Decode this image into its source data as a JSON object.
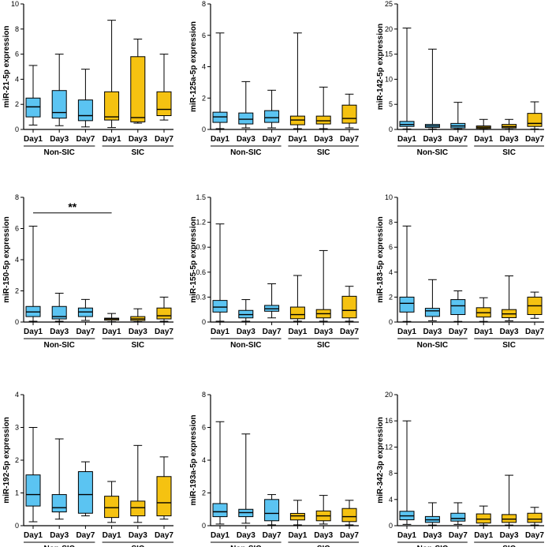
{
  "colors": {
    "non_sic": "#5bc4f2",
    "sic": "#f5c211",
    "axis": "#000000"
  },
  "chart_data": [
    {
      "type": "boxplot",
      "ylabel": "miR-21-5p  expression",
      "ylim": [
        0,
        10
      ],
      "ticks": [
        "0",
        "2",
        "4",
        "6",
        "8",
        "10"
      ],
      "tick_values": [
        0,
        2,
        4,
        6,
        8,
        10
      ],
      "categories": [
        "Day1",
        "Day3",
        "Day7",
        "Day1",
        "Day3",
        "Day7"
      ],
      "groups": [
        {
          "name": "Non-SIC",
          "from": 0,
          "to": 2
        },
        {
          "name": "SIC",
          "from": 3,
          "to": 5
        }
      ],
      "boxes": [
        {
          "min": 0.35,
          "q1": 1.0,
          "median": 1.8,
          "q3": 2.5,
          "max": 5.1,
          "group": "non_sic"
        },
        {
          "min": 0.3,
          "q1": 0.9,
          "median": 1.35,
          "q3": 3.1,
          "max": 6.0,
          "group": "non_sic"
        },
        {
          "min": 0.2,
          "q1": 0.7,
          "median": 1.1,
          "q3": 2.35,
          "max": 4.8,
          "group": "non_sic"
        },
        {
          "min": 0.15,
          "q1": 0.75,
          "median": 1.0,
          "q3": 3.0,
          "max": 8.7,
          "group": "sic"
        },
        {
          "min": 0.5,
          "q1": 0.6,
          "median": 0.95,
          "q3": 5.8,
          "max": 7.2,
          "group": "sic"
        },
        {
          "min": 0.75,
          "q1": 1.1,
          "median": 1.6,
          "q3": 3.0,
          "max": 6.0,
          "group": "sic"
        }
      ]
    },
    {
      "type": "boxplot",
      "ylabel": "miR-125a-5p  expression",
      "ylim": [
        0,
        8
      ],
      "ticks": [
        "0",
        "2",
        "4",
        "6",
        "8"
      ],
      "tick_values": [
        0,
        2,
        4,
        6,
        8
      ],
      "categories": [
        "Day1",
        "Day3",
        "Day7",
        "Day1",
        "Day3",
        "Day7"
      ],
      "groups": [
        {
          "name": "Non-SIC",
          "from": 0,
          "to": 2
        },
        {
          "name": "SIC",
          "from": 3,
          "to": 5
        }
      ],
      "boxes": [
        {
          "min": 0.05,
          "q1": 0.45,
          "median": 0.8,
          "q3": 1.1,
          "max": 6.15,
          "group": "non_sic"
        },
        {
          "min": 0.1,
          "q1": 0.35,
          "median": 0.65,
          "q3": 1.05,
          "max": 3.05,
          "group": "non_sic"
        },
        {
          "min": 0.1,
          "q1": 0.45,
          "median": 0.75,
          "q3": 1.2,
          "max": 2.5,
          "group": "non_sic"
        },
        {
          "min": 0.05,
          "q1": 0.3,
          "median": 0.6,
          "q3": 0.85,
          "max": 6.15,
          "group": "sic"
        },
        {
          "min": 0.05,
          "q1": 0.35,
          "median": 0.55,
          "q3": 0.85,
          "max": 2.7,
          "group": "sic"
        },
        {
          "min": 0.1,
          "q1": 0.4,
          "median": 0.7,
          "q3": 1.55,
          "max": 2.25,
          "group": "sic"
        }
      ]
    },
    {
      "type": "boxplot",
      "ylabel": "miR-142-5p  expression",
      "ylim": [
        0,
        25
      ],
      "ticks": [
        "0",
        "5",
        "10",
        "15",
        "20",
        "25"
      ],
      "tick_values": [
        0,
        5,
        10,
        15,
        20,
        25
      ],
      "categories": [
        "Day1",
        "Day3",
        "Day7",
        "Day1",
        "Day3",
        "Day7"
      ],
      "groups": [
        {
          "name": "Non-SIC",
          "from": 0,
          "to": 2
        },
        {
          "name": "SIC",
          "from": 3,
          "to": 5
        }
      ],
      "boxes": [
        {
          "min": 0.1,
          "q1": 0.6,
          "median": 1.0,
          "q3": 1.6,
          "max": 20.2,
          "group": "non_sic"
        },
        {
          "min": 0.1,
          "q1": 0.4,
          "median": 0.7,
          "q3": 1.0,
          "max": 16.0,
          "group": "non_sic"
        },
        {
          "min": 0.1,
          "q1": 0.3,
          "median": 0.7,
          "q3": 1.2,
          "max": 5.4,
          "group": "non_sic"
        },
        {
          "min": 0.05,
          "q1": 0.2,
          "median": 0.45,
          "q3": 0.7,
          "max": 2.0,
          "group": "sic"
        },
        {
          "min": 0.05,
          "q1": 0.3,
          "median": 0.55,
          "q3": 1.0,
          "max": 2.0,
          "group": "sic"
        },
        {
          "min": 0.1,
          "q1": 0.6,
          "median": 1.2,
          "q3": 3.2,
          "max": 5.5,
          "group": "sic"
        }
      ]
    },
    {
      "type": "boxplot",
      "ylabel": "miR-150-5p  expression",
      "ylim": [
        0,
        8
      ],
      "ticks": [
        "0",
        "2",
        "4",
        "6",
        "8"
      ],
      "tick_values": [
        0,
        2,
        4,
        6,
        8
      ],
      "categories": [
        "Day1",
        "Day3",
        "Day7",
        "Day1",
        "Day3",
        "Day7"
      ],
      "groups": [
        {
          "name": "Non-SIC",
          "from": 0,
          "to": 2
        },
        {
          "name": "SIC",
          "from": 3,
          "to": 5
        }
      ],
      "boxes": [
        {
          "min": 0.05,
          "q1": 0.35,
          "median": 0.65,
          "q3": 1.0,
          "max": 6.15,
          "group": "non_sic"
        },
        {
          "min": 0.05,
          "q1": 0.2,
          "median": 0.35,
          "q3": 1.0,
          "max": 1.85,
          "group": "non_sic"
        },
        {
          "min": 0.1,
          "q1": 0.35,
          "median": 0.65,
          "q3": 0.9,
          "max": 1.45,
          "group": "non_sic"
        },
        {
          "min": 0.02,
          "q1": 0.12,
          "median": 0.2,
          "q3": 0.25,
          "max": 0.55,
          "group": "sic"
        },
        {
          "min": 0.02,
          "q1": 0.1,
          "median": 0.2,
          "q3": 0.35,
          "max": 0.85,
          "group": "sic"
        },
        {
          "min": 0.05,
          "q1": 0.2,
          "median": 0.4,
          "q3": 0.9,
          "max": 1.6,
          "group": "sic"
        }
      ],
      "significance": {
        "label": "**",
        "from": 0,
        "to": 3,
        "y": 7.0
      }
    },
    {
      "type": "boxplot",
      "ylabel": "miR-155-5p  expression",
      "ylim": [
        0,
        1.5
      ],
      "ticks": [
        "0",
        "0.3",
        "0.6",
        "0.9",
        "1.2",
        "1.5"
      ],
      "tick_values": [
        0,
        0.3,
        0.6,
        0.9,
        1.2,
        1.5
      ],
      "categories": [
        "Day1",
        "Day3",
        "Day7",
        "Day1",
        "Day3",
        "Day7"
      ],
      "groups": [
        {
          "name": "Non-SIC",
          "from": 0,
          "to": 2
        },
        {
          "name": "SIC",
          "from": 3,
          "to": 5
        }
      ],
      "boxes": [
        {
          "min": 0.01,
          "q1": 0.12,
          "median": 0.18,
          "q3": 0.26,
          "max": 1.18,
          "group": "non_sic"
        },
        {
          "min": 0.01,
          "q1": 0.05,
          "median": 0.09,
          "q3": 0.14,
          "max": 0.27,
          "group": "non_sic"
        },
        {
          "min": 0.05,
          "q1": 0.13,
          "median": 0.16,
          "q3": 0.2,
          "max": 0.46,
          "group": "non_sic"
        },
        {
          "min": 0.01,
          "q1": 0.04,
          "median": 0.09,
          "q3": 0.18,
          "max": 0.56,
          "group": "sic"
        },
        {
          "min": 0.01,
          "q1": 0.05,
          "median": 0.1,
          "q3": 0.15,
          "max": 0.86,
          "group": "sic"
        },
        {
          "min": 0.01,
          "q1": 0.05,
          "median": 0.14,
          "q3": 0.31,
          "max": 0.43,
          "group": "sic"
        }
      ]
    },
    {
      "type": "boxplot",
      "ylabel": "miR-183-5p  expression",
      "ylim": [
        0,
        10
      ],
      "ticks": [
        "0",
        "2",
        "4",
        "6",
        "8",
        "10"
      ],
      "tick_values": [
        0,
        2,
        4,
        6,
        8,
        10
      ],
      "categories": [
        "Day1",
        "Day3",
        "Day7",
        "Day1",
        "Day3",
        "Day7"
      ],
      "groups": [
        {
          "name": "Non-SIC",
          "from": 0,
          "to": 2
        },
        {
          "name": "SIC",
          "from": 3,
          "to": 5
        }
      ],
      "boxes": [
        {
          "min": 0.05,
          "q1": 0.8,
          "median": 1.5,
          "q3": 2.0,
          "max": 7.7,
          "group": "non_sic"
        },
        {
          "min": 0.1,
          "q1": 0.45,
          "median": 0.9,
          "q3": 1.1,
          "max": 3.4,
          "group": "non_sic"
        },
        {
          "min": 0.05,
          "q1": 0.6,
          "median": 1.3,
          "q3": 1.8,
          "max": 2.5,
          "group": "non_sic"
        },
        {
          "min": 0.05,
          "q1": 0.4,
          "median": 0.75,
          "q3": 1.15,
          "max": 1.95,
          "group": "sic"
        },
        {
          "min": 0.1,
          "q1": 0.35,
          "median": 0.65,
          "q3": 1.0,
          "max": 3.7,
          "group": "sic"
        },
        {
          "min": 0.3,
          "q1": 0.6,
          "median": 1.3,
          "q3": 2.0,
          "max": 2.4,
          "group": "sic"
        }
      ]
    },
    {
      "type": "boxplot",
      "ylabel": "miR-192-5p  expression",
      "ylim": [
        0,
        4
      ],
      "ticks": [
        "0",
        "1",
        "2",
        "3",
        "4"
      ],
      "tick_values": [
        0,
        1,
        2,
        3,
        4
      ],
      "categories": [
        "Day1",
        "Day3",
        "Day7",
        "Day1",
        "Day3",
        "Day7"
      ],
      "groups": [
        {
          "name": "Non-SIC",
          "from": 0,
          "to": 2
        },
        {
          "name": "SIC",
          "from": 3,
          "to": 5
        }
      ],
      "boxes": [
        {
          "min": 0.12,
          "q1": 0.6,
          "median": 0.95,
          "q3": 1.55,
          "max": 3.0,
          "group": "non_sic"
        },
        {
          "min": 0.2,
          "q1": 0.42,
          "median": 0.55,
          "q3": 0.95,
          "max": 2.65,
          "group": "non_sic"
        },
        {
          "min": 0.3,
          "q1": 0.38,
          "median": 0.95,
          "q3": 1.65,
          "max": 1.95,
          "group": "non_sic"
        },
        {
          "min": 0.1,
          "q1": 0.25,
          "median": 0.55,
          "q3": 0.9,
          "max": 1.35,
          "group": "sic"
        },
        {
          "min": 0.1,
          "q1": 0.3,
          "median": 0.55,
          "q3": 0.75,
          "max": 2.45,
          "group": "sic"
        },
        {
          "min": 0.2,
          "q1": 0.3,
          "median": 0.7,
          "q3": 1.5,
          "max": 2.1,
          "group": "sic"
        }
      ]
    },
    {
      "type": "boxplot",
      "ylabel": "miR-193a-5p  expression",
      "ylim": [
        0,
        8
      ],
      "ticks": [
        "0",
        "2",
        "4",
        "6",
        "8"
      ],
      "tick_values": [
        0,
        2,
        4,
        6,
        8
      ],
      "categories": [
        "Day1",
        "Day3",
        "Day7",
        "Day1",
        "Day3",
        "Day7"
      ],
      "groups": [
        {
          "name": "Non-SIC",
          "from": 0,
          "to": 2
        },
        {
          "name": "SIC",
          "from": 3,
          "to": 5
        }
      ],
      "boxes": [
        {
          "min": 0.1,
          "q1": 0.55,
          "median": 0.85,
          "q3": 1.35,
          "max": 6.35,
          "group": "non_sic"
        },
        {
          "min": 0.15,
          "q1": 0.55,
          "median": 0.8,
          "q3": 1.0,
          "max": 5.6,
          "group": "non_sic"
        },
        {
          "min": 0.05,
          "q1": 0.3,
          "median": 0.75,
          "q3": 1.6,
          "max": 1.9,
          "group": "non_sic"
        },
        {
          "min": 0.05,
          "q1": 0.35,
          "median": 0.6,
          "q3": 0.75,
          "max": 1.55,
          "group": "sic"
        },
        {
          "min": 0.1,
          "q1": 0.3,
          "median": 0.6,
          "q3": 0.9,
          "max": 1.85,
          "group": "sic"
        },
        {
          "min": 0.05,
          "q1": 0.25,
          "median": 0.55,
          "q3": 1.05,
          "max": 1.55,
          "group": "sic"
        }
      ]
    },
    {
      "type": "boxplot",
      "ylabel": "miR-342-3p  expression",
      "ylim": [
        0,
        20
      ],
      "ticks": [
        "0",
        "4",
        "8",
        "12",
        "16",
        "20"
      ],
      "tick_values": [
        0,
        4,
        8,
        12,
        16,
        20
      ],
      "categories": [
        "Day1",
        "Day3",
        "Day7",
        "Day1",
        "Day3",
        "Day7"
      ],
      "groups": [
        {
          "name": "Non-SIC",
          "from": 0,
          "to": 2
        },
        {
          "name": "SIC",
          "from": 3,
          "to": 5
        }
      ],
      "boxes": [
        {
          "min": 0.2,
          "q1": 0.9,
          "median": 1.5,
          "q3": 2.2,
          "max": 16.0,
          "group": "non_sic"
        },
        {
          "min": 0.1,
          "q1": 0.5,
          "median": 0.9,
          "q3": 1.4,
          "max": 3.5,
          "group": "non_sic"
        },
        {
          "min": 0.2,
          "q1": 0.7,
          "median": 1.1,
          "q3": 1.9,
          "max": 3.5,
          "group": "non_sic"
        },
        {
          "min": 0.1,
          "q1": 0.4,
          "median": 1.0,
          "q3": 1.8,
          "max": 3.0,
          "group": "sic"
        },
        {
          "min": 0.1,
          "q1": 0.5,
          "median": 1.0,
          "q3": 1.7,
          "max": 7.7,
          "group": "sic"
        },
        {
          "min": 0.1,
          "q1": 0.5,
          "median": 1.0,
          "q3": 1.9,
          "max": 2.8,
          "group": "sic"
        }
      ]
    }
  ]
}
